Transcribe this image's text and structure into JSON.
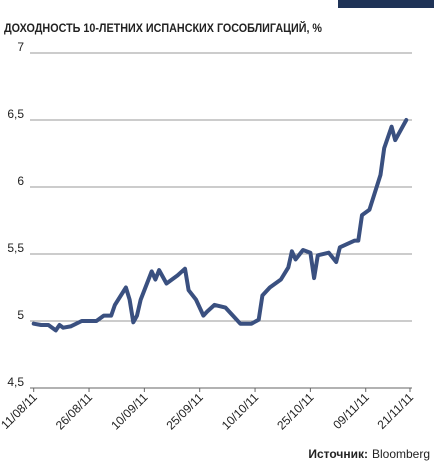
{
  "chart_data": {
    "type": "line",
    "title": "ДОХОДНОСТЬ 10-ЛЕТНИХ ИСПАНСКИХ ГОСОБЛИГАЦИЙ, %",
    "source_label": "Источник:",
    "source": "Bloomberg",
    "grid": true,
    "ylim": [
      4.5,
      7
    ],
    "yticks": [
      {
        "value": 4.5,
        "label": "4,5"
      },
      5,
      {
        "value": 5.5,
        "label": "5,5"
      },
      6,
      {
        "value": 6.5,
        "label": "6,5"
      },
      7
    ],
    "xlim": [
      "10/08/11",
      "21/11/11"
    ],
    "xticks": [
      "11/08/11",
      "26/08/11",
      "10/09/11",
      "25/09/11",
      "10/10/11",
      "25/10/11",
      "09/11/11",
      "21/11/11"
    ],
    "x": [
      "11/08/11",
      "13/08/11",
      "15/08/11",
      "17/08/11",
      "18/08/11",
      "19/08/11",
      "21/08/11",
      "24/08/11",
      "28/08/11",
      "30/08/11",
      "01/09/11",
      "02/09/11",
      "05/09/11",
      "06/09/11",
      "07/09/11",
      "08/09/11",
      "09/09/11",
      "12/09/11",
      "13/09/11",
      "14/09/11",
      "16/09/11",
      "19/09/11",
      "21/09/11",
      "22/09/11",
      "24/09/11",
      "26/09/11",
      "27/09/11",
      "29/09/11",
      "02/10/11",
      "04/10/11",
      "06/10/11",
      "09/10/11",
      "11/10/11",
      "12/10/11",
      "14/10/11",
      "17/10/11",
      "19/10/11",
      "20/10/11",
      "21/10/11",
      "23/10/11",
      "25/10/11",
      "26/10/11",
      "27/10/11",
      "30/10/11",
      "01/11/11",
      "02/11/11",
      "06/11/11",
      "07/11/11",
      "08/11/11",
      "10/11/11",
      "13/11/11",
      "14/11/11",
      "16/11/11",
      "17/11/11",
      "20/11/11"
    ],
    "series": [
      {
        "color": "#3a5080",
        "values": [
          4.98,
          4.97,
          4.97,
          4.93,
          4.97,
          4.95,
          4.96,
          5.0,
          5.0,
          5.04,
          5.04,
          5.12,
          5.25,
          5.16,
          4.99,
          5.04,
          5.16,
          5.37,
          5.31,
          5.38,
          5.28,
          5.34,
          5.39,
          5.23,
          5.16,
          5.04,
          5.07,
          5.12,
          5.1,
          5.04,
          4.98,
          4.98,
          5.01,
          5.19,
          5.25,
          5.31,
          5.4,
          5.52,
          5.46,
          5.53,
          5.51,
          5.32,
          5.49,
          5.51,
          5.44,
          5.55,
          5.6,
          5.6,
          5.79,
          5.83,
          6.09,
          6.29,
          6.45,
          6.35,
          6.5
        ]
      }
    ]
  }
}
